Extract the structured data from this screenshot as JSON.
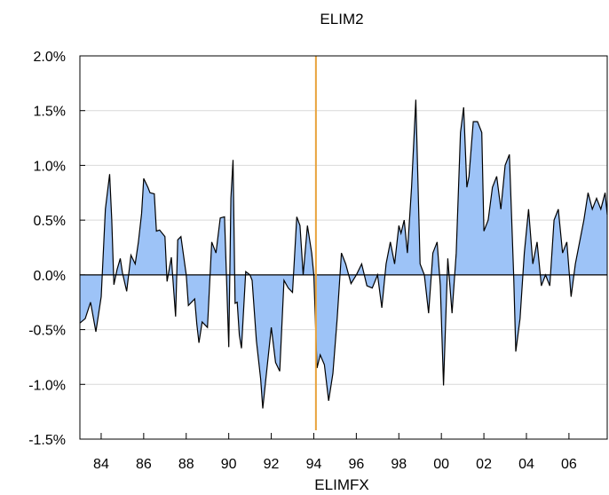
{
  "chart_data": {
    "type": "area",
    "title": "ELIM2",
    "xlabel": "ELIMFX",
    "ylabel": "",
    "xlim": [
      1983.0,
      2007.8
    ],
    "ylim": [
      -1.5,
      2.0
    ],
    "y_unit": "%",
    "xticks": [
      {
        "value": 1984,
        "label": "84"
      },
      {
        "value": 1986,
        "label": "86"
      },
      {
        "value": 1988,
        "label": "88"
      },
      {
        "value": 1990,
        "label": "90"
      },
      {
        "value": 1992,
        "label": "92"
      },
      {
        "value": 1994,
        "label": "94"
      },
      {
        "value": 1996,
        "label": "96"
      },
      {
        "value": 1998,
        "label": "98"
      },
      {
        "value": 2000,
        "label": "00"
      },
      {
        "value": 2002,
        "label": "02"
      },
      {
        "value": 2004,
        "label": "04"
      },
      {
        "value": 2006,
        "label": "06"
      }
    ],
    "yticks": [
      {
        "value": 2.0,
        "label": "2.0%"
      },
      {
        "value": 1.5,
        "label": "1.5%"
      },
      {
        "value": 1.0,
        "label": "1.0%"
      },
      {
        "value": 0.5,
        "label": "0.5%"
      },
      {
        "value": 0.0,
        "label": "0.0%"
      },
      {
        "value": -0.5,
        "label": "-0.5%"
      },
      {
        "value": -1.0,
        "label": "-1.0%"
      },
      {
        "value": -1.5,
        "label": "-1.5%"
      }
    ],
    "grid": true,
    "vertical_marker": {
      "x": 1994.1,
      "color": "#E8A33C"
    },
    "colors": {
      "fill": "#9DC3F7",
      "line": "#000000",
      "zero": "#000000",
      "grid": "#d9d9d9"
    },
    "series": [
      {
        "x": [
          1983.0,
          1983.25,
          1983.5,
          1983.75,
          1984.0,
          1984.2,
          1984.4,
          1984.5,
          1984.6,
          1984.75,
          1984.9,
          1985.0,
          1985.2,
          1985.4,
          1985.6,
          1985.75,
          1985.9,
          1986.0,
          1986.2,
          1986.3,
          1986.5,
          1986.6,
          1986.75,
          1987.0,
          1987.1,
          1987.3,
          1987.5,
          1987.6,
          1987.75,
          1988.0,
          1988.1,
          1988.25,
          1988.4,
          1988.5,
          1988.6,
          1988.75,
          1989.0,
          1989.2,
          1989.4,
          1989.6,
          1989.8,
          1990.0,
          1990.1,
          1990.2,
          1990.3,
          1990.4,
          1990.5,
          1990.6,
          1990.8,
          1991.0,
          1991.1,
          1991.3,
          1991.5,
          1991.6,
          1991.75,
          1992.0,
          1992.2,
          1992.4,
          1992.6,
          1992.8,
          1993.0,
          1993.2,
          1993.35,
          1993.5,
          1993.7,
          1993.9,
          1994.0,
          1994.15,
          1994.3,
          1994.5,
          1994.7,
          1994.9,
          1995.1,
          1995.3,
          1995.5,
          1995.75,
          1996.0,
          1996.25,
          1996.5,
          1996.75,
          1997.0,
          1997.2,
          1997.4,
          1997.6,
          1997.8,
          1998.0,
          1998.1,
          1998.25,
          1998.4,
          1998.6,
          1998.8,
          1999.0,
          1999.2,
          1999.4,
          1999.6,
          1999.8,
          1999.95,
          2000.1,
          2000.3,
          2000.5,
          2000.7,
          2000.9,
          2001.05,
          2001.2,
          2001.3,
          2001.5,
          2001.7,
          2001.9,
          2002.0,
          2002.2,
          2002.4,
          2002.6,
          2002.8,
          2003.0,
          2003.2,
          2003.4,
          2003.5,
          2003.7,
          2003.9,
          2004.1,
          2004.3,
          2004.5,
          2004.7,
          2004.9,
          2005.1,
          2005.3,
          2005.5,
          2005.7,
          2005.9,
          2006.1,
          2006.3,
          2006.5,
          2006.7,
          2006.9,
          2007.1,
          2007.3,
          2007.5,
          2007.7,
          2007.8
        ],
        "values": [
          -0.44,
          -0.4,
          -0.25,
          -0.52,
          -0.2,
          0.6,
          0.92,
          0.5,
          -0.09,
          0.05,
          0.15,
          0.02,
          -0.15,
          0.18,
          0.1,
          0.3,
          0.56,
          0.88,
          0.8,
          0.75,
          0.74,
          0.4,
          0.41,
          0.35,
          -0.06,
          0.16,
          -0.38,
          0.32,
          0.35,
          0.0,
          -0.28,
          -0.25,
          -0.22,
          -0.45,
          -0.62,
          -0.43,
          -0.48,
          0.3,
          0.2,
          0.52,
          0.53,
          -0.66,
          0.7,
          1.05,
          -0.26,
          -0.25,
          -0.55,
          -0.67,
          0.03,
          0.0,
          -0.05,
          -0.6,
          -0.95,
          -1.22,
          -0.94,
          -0.48,
          -0.8,
          -0.88,
          -0.05,
          -0.12,
          -0.16,
          0.53,
          0.45,
          0.0,
          0.45,
          0.2,
          0.0,
          -0.85,
          -0.73,
          -0.82,
          -1.15,
          -0.9,
          -0.4,
          0.2,
          0.1,
          -0.08,
          0.0,
          0.1,
          -0.1,
          -0.12,
          0.0,
          -0.3,
          0.1,
          0.3,
          0.1,
          0.45,
          0.38,
          0.5,
          0.2,
          0.8,
          1.6,
          0.1,
          0.0,
          -0.35,
          0.2,
          0.3,
          -0.1,
          -1.01,
          0.15,
          -0.35,
          0.2,
          1.3,
          1.53,
          0.8,
          0.9,
          1.4,
          1.4,
          1.3,
          0.4,
          0.5,
          0.8,
          0.9,
          0.6,
          1.0,
          1.1,
          0.0,
          -0.7,
          -0.4,
          0.2,
          0.6,
          0.1,
          0.3,
          -0.1,
          0.0,
          -0.1,
          0.5,
          0.6,
          0.2,
          0.3,
          -0.2,
          0.1,
          0.3,
          0.5,
          0.75,
          0.6,
          0.7,
          0.6,
          0.75,
          0.55
        ]
      }
    ]
  }
}
